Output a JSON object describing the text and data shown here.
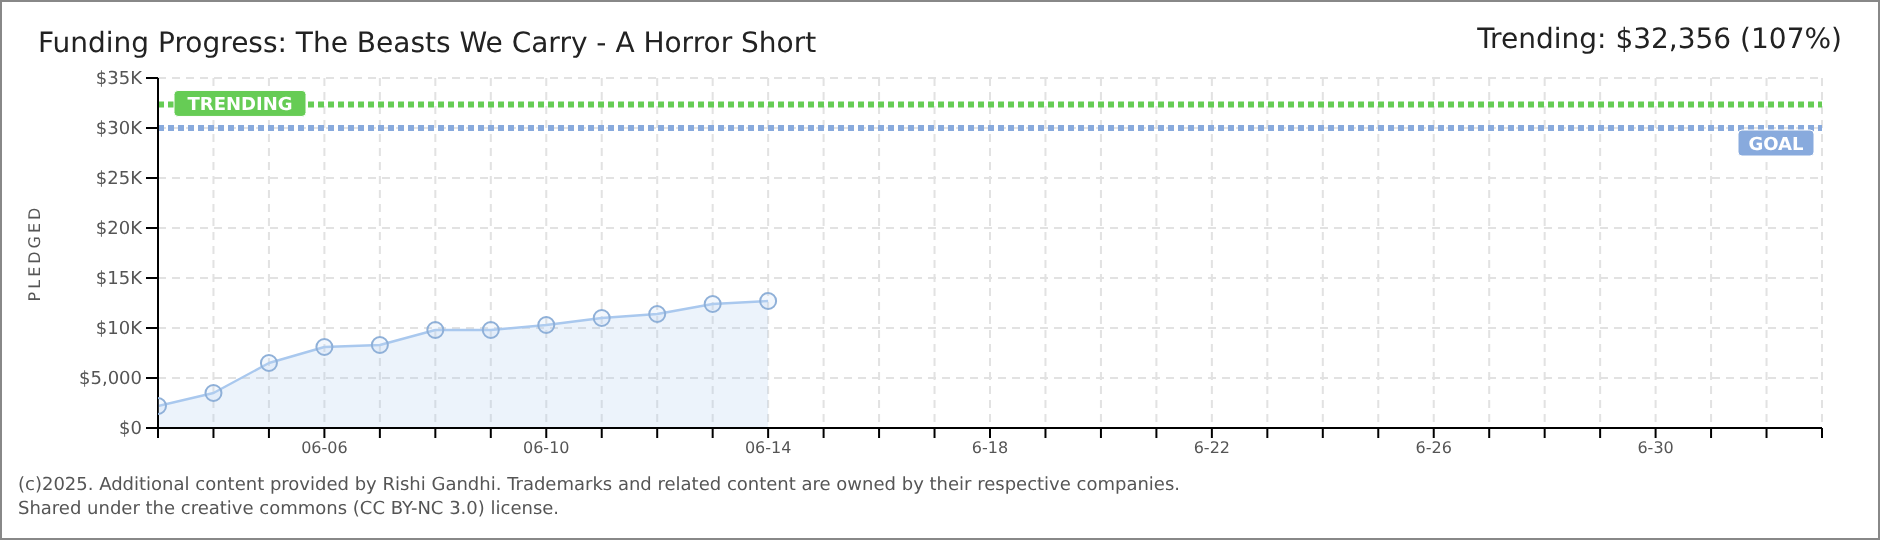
{
  "chart_data": {
    "type": "area",
    "title": "Funding Progress: The Beasts We Carry - A Horror Short",
    "subtitle": "Trending: $32,356 (107%)",
    "ylabel": "PLEDGED",
    "x": [
      "--06-03",
      "--06-04",
      "--06-05",
      "--06-06",
      "--06-07",
      "--06-08",
      "--06-09",
      "--06-10",
      "--06-11",
      "--06-12",
      "--06-13",
      "--06-14"
    ],
    "series": [
      {
        "color": "#a9c8ee",
        "values": [
          2200,
          3500,
          6500,
          8100,
          8300,
          9800,
          9800,
          10300,
          11000,
          11400,
          12400,
          12700
        ]
      }
    ],
    "marker": "circle",
    "grid": true,
    "xlim": [
      "--06-03",
      "--07-03"
    ],
    "xticks": [
      {
        "value": "--06-03",
        "label": null
      },
      {
        "value": "--06-04",
        "label": null
      },
      {
        "value": "--06-05",
        "label": null
      },
      {
        "value": "--06-06",
        "label": "06-06"
      },
      {
        "value": "--06-07",
        "label": null
      },
      {
        "value": "--06-08",
        "label": null
      },
      {
        "value": "--06-09",
        "label": null
      },
      {
        "value": "--06-10",
        "label": "06-10"
      },
      {
        "value": "--06-11",
        "label": null
      },
      {
        "value": "--06-12",
        "label": null
      },
      {
        "value": "--06-13",
        "label": null
      },
      {
        "value": "--06-14",
        "label": "06-14"
      },
      {
        "value": "--06-15",
        "label": null
      },
      {
        "value": "--06-16",
        "label": null
      },
      {
        "value": "--06-17",
        "label": null
      },
      {
        "value": "--06-18",
        "label": "6-18"
      },
      {
        "value": "--06-19",
        "label": null
      },
      {
        "value": "--06-20",
        "label": null
      },
      {
        "value": "--06-21",
        "label": null
      },
      {
        "value": "--06-22",
        "label": "6-22"
      },
      {
        "value": "--06-23",
        "label": null
      },
      {
        "value": "--06-24",
        "label": null
      },
      {
        "value": "--06-25",
        "label": null
      },
      {
        "value": "--06-26",
        "label": "6-26"
      },
      {
        "value": "--06-27",
        "label": null
      },
      {
        "value": "--06-28",
        "label": null
      },
      {
        "value": "--06-29",
        "label": null
      },
      {
        "value": "--06-30",
        "label": "6-30"
      },
      {
        "value": "--07-01",
        "label": null
      },
      {
        "value": "--07-02",
        "label": null
      },
      {
        "value": "--07-03",
        "label": null
      }
    ],
    "ylim": [
      0,
      35000
    ],
    "yticks": [
      {
        "value": 0,
        "label": "$0"
      },
      {
        "value": 5000,
        "label": "$5,000"
      },
      {
        "value": 10000,
        "label": "$10K"
      },
      {
        "value": 15000,
        "label": "$15K"
      },
      {
        "value": 20000,
        "label": "$20K"
      },
      {
        "value": 25000,
        "label": "$25K"
      },
      {
        "value": 30000,
        "label": "$30K"
      },
      {
        "value": 35000,
        "label": "$35K"
      }
    ],
    "ref_lines": [
      {
        "axis": "y",
        "value": 32356,
        "label": "TRENDING",
        "color": "#66cc55",
        "line_style": "dotted"
      },
      {
        "axis": "y",
        "value": 30000,
        "label": "GOAL",
        "color": "#88aadd",
        "line_style": "dotted"
      }
    ],
    "annotations": [
      "(c)2025. Additional content provided by Rishi Gandhi. Trademarks and related content are owned by their respective companies.",
      "Shared under the creative commons (CC BY-NC 3.0) license."
    ]
  }
}
